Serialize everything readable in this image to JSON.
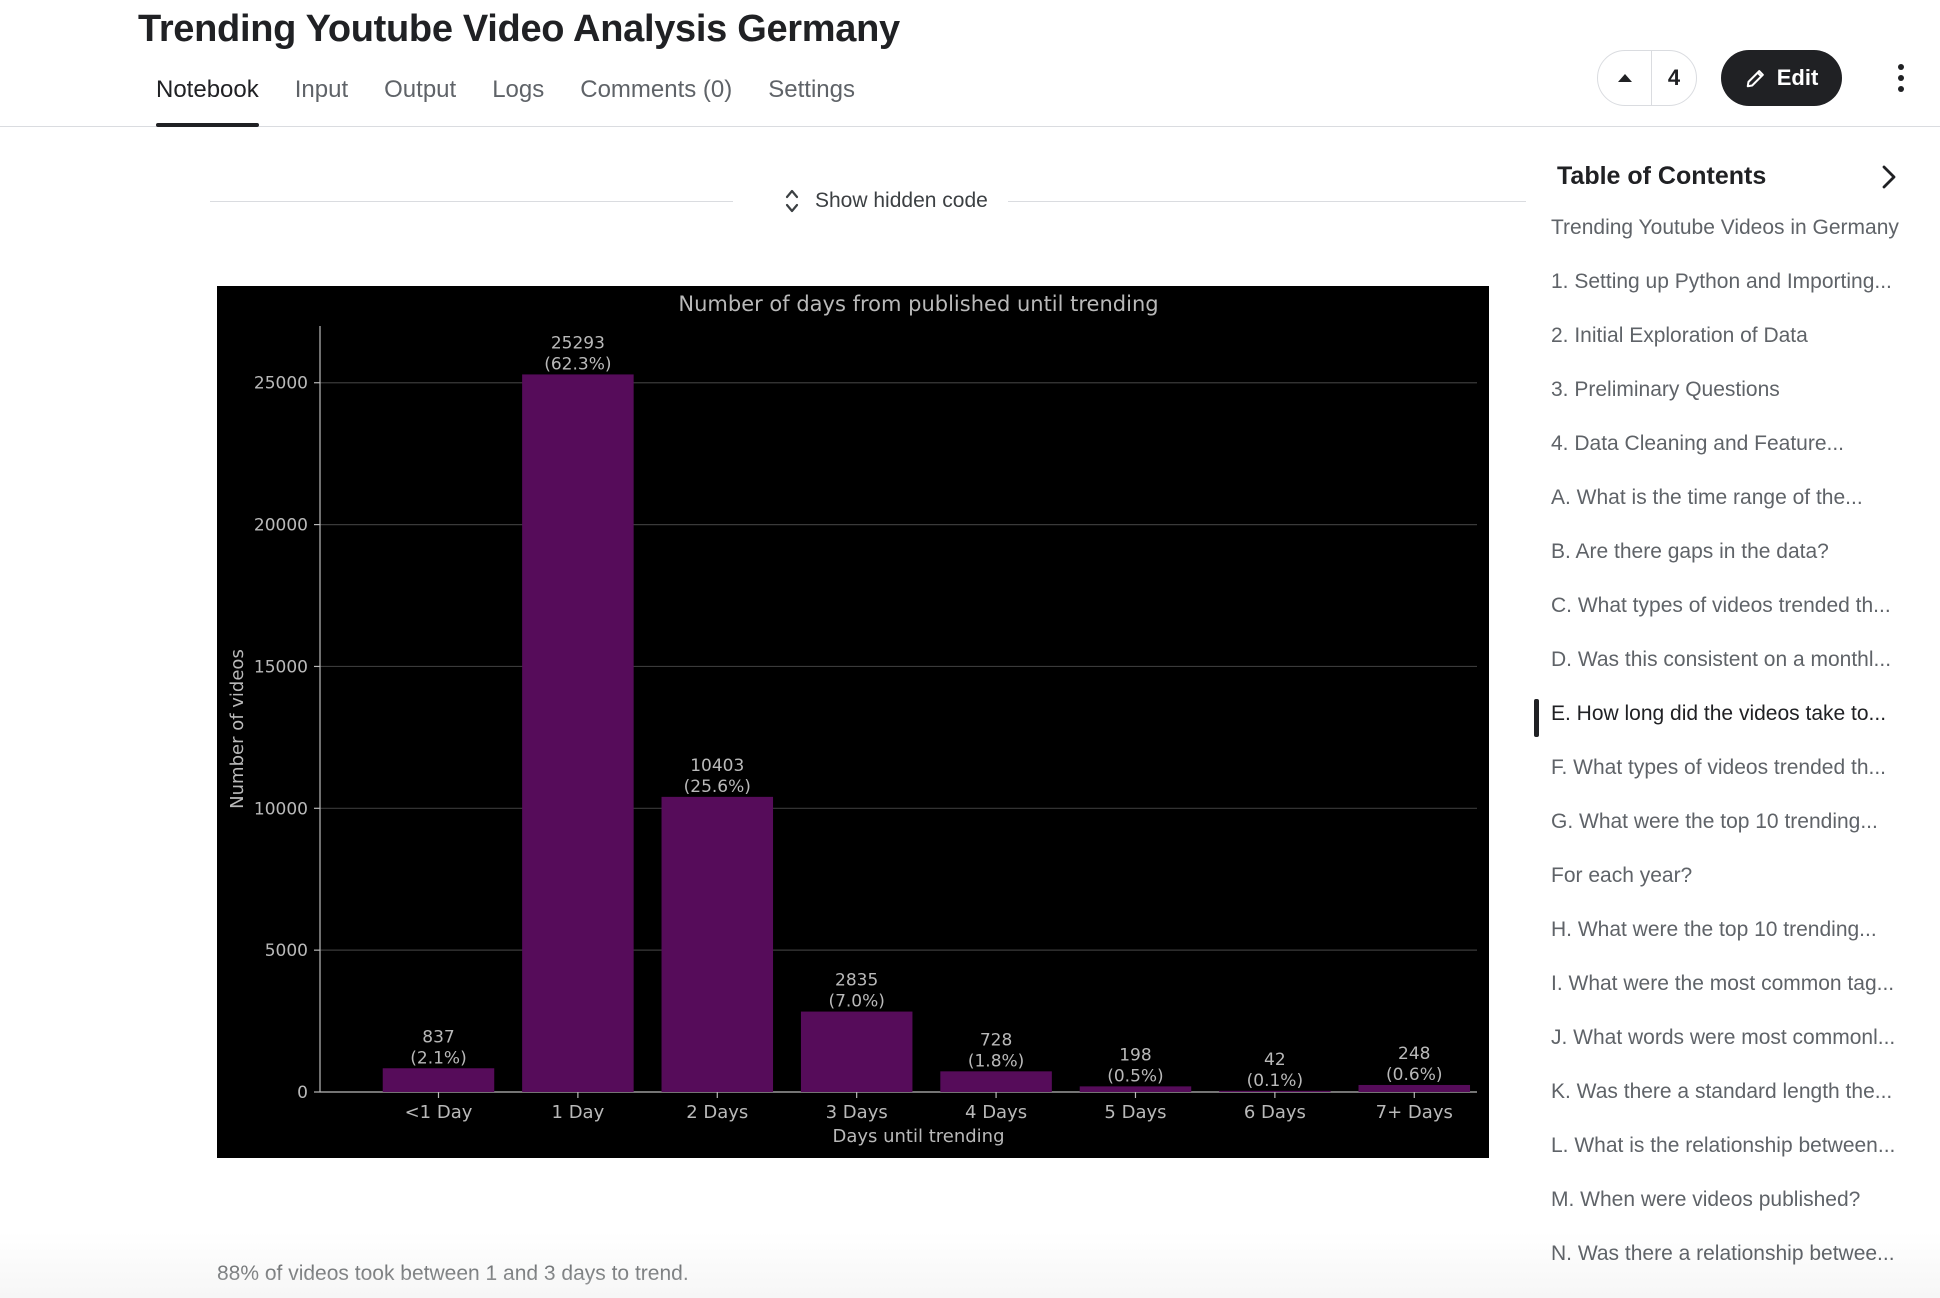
{
  "header": {
    "title": "Trending Youtube Video Analysis Germany",
    "tabs": [
      {
        "label": "Notebook",
        "active": true
      },
      {
        "label": "Input"
      },
      {
        "label": "Output"
      },
      {
        "label": "Logs"
      },
      {
        "label": "Comments (0)"
      },
      {
        "label": "Settings"
      }
    ],
    "vote_count": "4",
    "edit_label": "Edit"
  },
  "notebook": {
    "hidden_code_label": "Show hidden code",
    "caption": "88% of videos took between 1 and 3 days to trend."
  },
  "chart_data": {
    "type": "bar",
    "title": "Number of days from published until trending",
    "xlabel": "Days until trending",
    "ylabel": "Number of videos",
    "categories": [
      "<1 Day",
      "1 Day",
      "2 Days",
      "3 Days",
      "4 Days",
      "5 Days",
      "6 Days",
      "7+ Days"
    ],
    "values": [
      837,
      25293,
      10403,
      2835,
      728,
      198,
      42,
      248
    ],
    "value_labels": [
      "837",
      "25293",
      "10403",
      "2835",
      "728",
      "198",
      "42",
      "248"
    ],
    "percent_labels": [
      "(2.1%)",
      "(62.3%)",
      "(25.6%)",
      "(7.0%)",
      "(1.8%)",
      "(0.5%)",
      "(0.1%)",
      "(0.6%)"
    ],
    "yticks": [
      0,
      5000,
      10000,
      15000,
      20000,
      25000
    ],
    "ylim": [
      0,
      27000
    ],
    "grid": true,
    "bar_color": "#560c5a",
    "background": "#000000",
    "text_color": "#b9b9b9"
  },
  "toc": {
    "title": "Table of Contents",
    "items": [
      {
        "label": "Trending Youtube Videos in Germany"
      },
      {
        "label": "1. Setting up Python and Importing..."
      },
      {
        "label": "2. Initial Exploration of Data"
      },
      {
        "label": "3. Preliminary Questions"
      },
      {
        "label": "4. Data Cleaning and Feature..."
      },
      {
        "label": "A. What is the time range of the..."
      },
      {
        "label": "B. Are there gaps in the data?"
      },
      {
        "label": "C. What types of videos trended th..."
      },
      {
        "label": "D. Was this consistent on a monthl..."
      },
      {
        "label": "E. How long did the videos take to...",
        "active": true
      },
      {
        "label": "F. What types of videos trended th..."
      },
      {
        "label": "G. What were the top 10 trending..."
      },
      {
        "label": "For each year?"
      },
      {
        "label": "H. What were the top 10 trending..."
      },
      {
        "label": "I. What were the most common tag..."
      },
      {
        "label": "J. What words were most commonl..."
      },
      {
        "label": "K. Was there a standard length the..."
      },
      {
        "label": "L. What is the relationship between..."
      },
      {
        "label": "M. When were videos published?"
      },
      {
        "label": "N. Was there a relationship betwee..."
      }
    ]
  }
}
